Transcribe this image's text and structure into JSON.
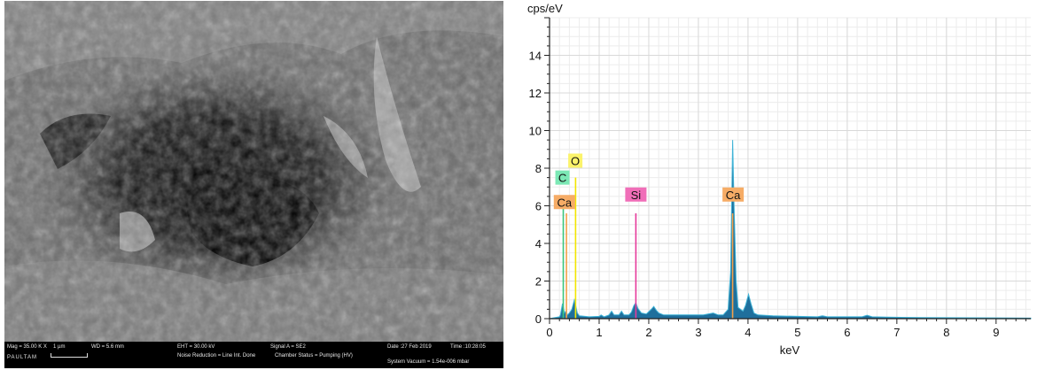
{
  "sem": {
    "image_label": "SEM micrograph",
    "databar": {
      "mag": "Mag = 35.00 K X",
      "scale": "1 µm",
      "wd": "WD = 5.6 mm",
      "eht": "EHT = 30.00 kV",
      "signal": "Signal A = SE2",
      "date": "Date :27 Feb 2019",
      "time": "Time :10:28:05",
      "noise": "Noise Reduction = Line Int. Done",
      "chamber": "Chamber Status = Pumping (HV)",
      "vacuum": "System Vacuum = 1.54e-006 mbar",
      "operator": "PAULTAM"
    }
  },
  "chart_data": {
    "type": "area",
    "ylabel": "cps/eV",
    "xlabel": "keV",
    "xlim": [
      0,
      9.7
    ],
    "ylim": [
      0,
      16
    ],
    "xticks": [
      0,
      1,
      2,
      3,
      4,
      5,
      6,
      7,
      8,
      9
    ],
    "yticks": [
      0,
      2,
      4,
      6,
      8,
      10,
      12,
      14
    ],
    "grid": true,
    "spectrum": {
      "x": [
        0.0,
        0.1,
        0.2,
        0.22,
        0.26,
        0.28,
        0.3,
        0.33,
        0.36,
        0.4,
        0.45,
        0.5,
        0.52,
        0.56,
        0.6,
        0.8,
        1.0,
        1.04,
        1.1,
        1.2,
        1.25,
        1.3,
        1.4,
        1.45,
        1.5,
        1.6,
        1.65,
        1.7,
        1.74,
        1.78,
        1.85,
        1.95,
        2.05,
        2.1,
        2.15,
        2.2,
        2.3,
        2.5,
        2.8,
        3.1,
        3.3,
        3.4,
        3.5,
        3.6,
        3.65,
        3.69,
        3.72,
        3.76,
        3.8,
        3.9,
        3.95,
        4.01,
        4.06,
        4.12,
        4.2,
        4.5,
        5.0,
        5.4,
        5.5,
        5.6,
        6.0,
        6.3,
        6.4,
        6.5,
        6.8,
        7.5,
        8.0,
        9.0,
        9.7
      ],
      "y": [
        0.0,
        0.05,
        0.1,
        0.2,
        0.8,
        0.6,
        0.3,
        0.4,
        0.2,
        0.3,
        0.5,
        1.0,
        0.8,
        0.3,
        0.15,
        0.1,
        0.12,
        0.2,
        0.1,
        0.2,
        0.4,
        0.2,
        0.2,
        0.4,
        0.2,
        0.2,
        0.35,
        0.7,
        0.85,
        0.55,
        0.3,
        0.25,
        0.5,
        0.65,
        0.45,
        0.3,
        0.2,
        0.2,
        0.2,
        0.2,
        0.3,
        0.2,
        0.2,
        0.5,
        2.5,
        9.5,
        6.0,
        2.0,
        0.6,
        0.4,
        0.7,
        1.3,
        0.8,
        0.3,
        0.2,
        0.15,
        0.12,
        0.1,
        0.15,
        0.1,
        0.1,
        0.1,
        0.18,
        0.1,
        0.08,
        0.06,
        0.05,
        0.04,
        0.03
      ]
    },
    "element_lines": [
      {
        "label": "C",
        "kev": 0.277,
        "height": 6.5,
        "color": "#3cc47c",
        "label_x": 0.26,
        "label_y": 7.5,
        "label_bg": "#7be8b5"
      },
      {
        "label": "O",
        "kev": 0.525,
        "height": 7.5,
        "color": "#f2e600",
        "label_x": 0.52,
        "label_y": 8.4,
        "label_bg": "#fbf36a"
      },
      {
        "label": "Ca",
        "kev": 0.341,
        "height": 5.6,
        "color": "#f4a14a",
        "label_x": 0.3,
        "label_y": 6.2,
        "label_bg": "#f6ac66"
      },
      {
        "label": "Si",
        "kev": 1.74,
        "height": 5.6,
        "color": "#e6399b",
        "label_x": 1.74,
        "label_y": 6.6,
        "label_bg": "#f06eb8"
      },
      {
        "label": "Ca",
        "kev": 3.69,
        "height": 5.6,
        "color": "#f4a14a",
        "label_x": 3.7,
        "label_y": 6.6,
        "label_bg": "#f6ac66"
      }
    ],
    "colors": {
      "fill": "#1f6f9c",
      "stroke": "#3fb3d6",
      "grid": "#d9d9d9",
      "axis": "#222222"
    }
  }
}
